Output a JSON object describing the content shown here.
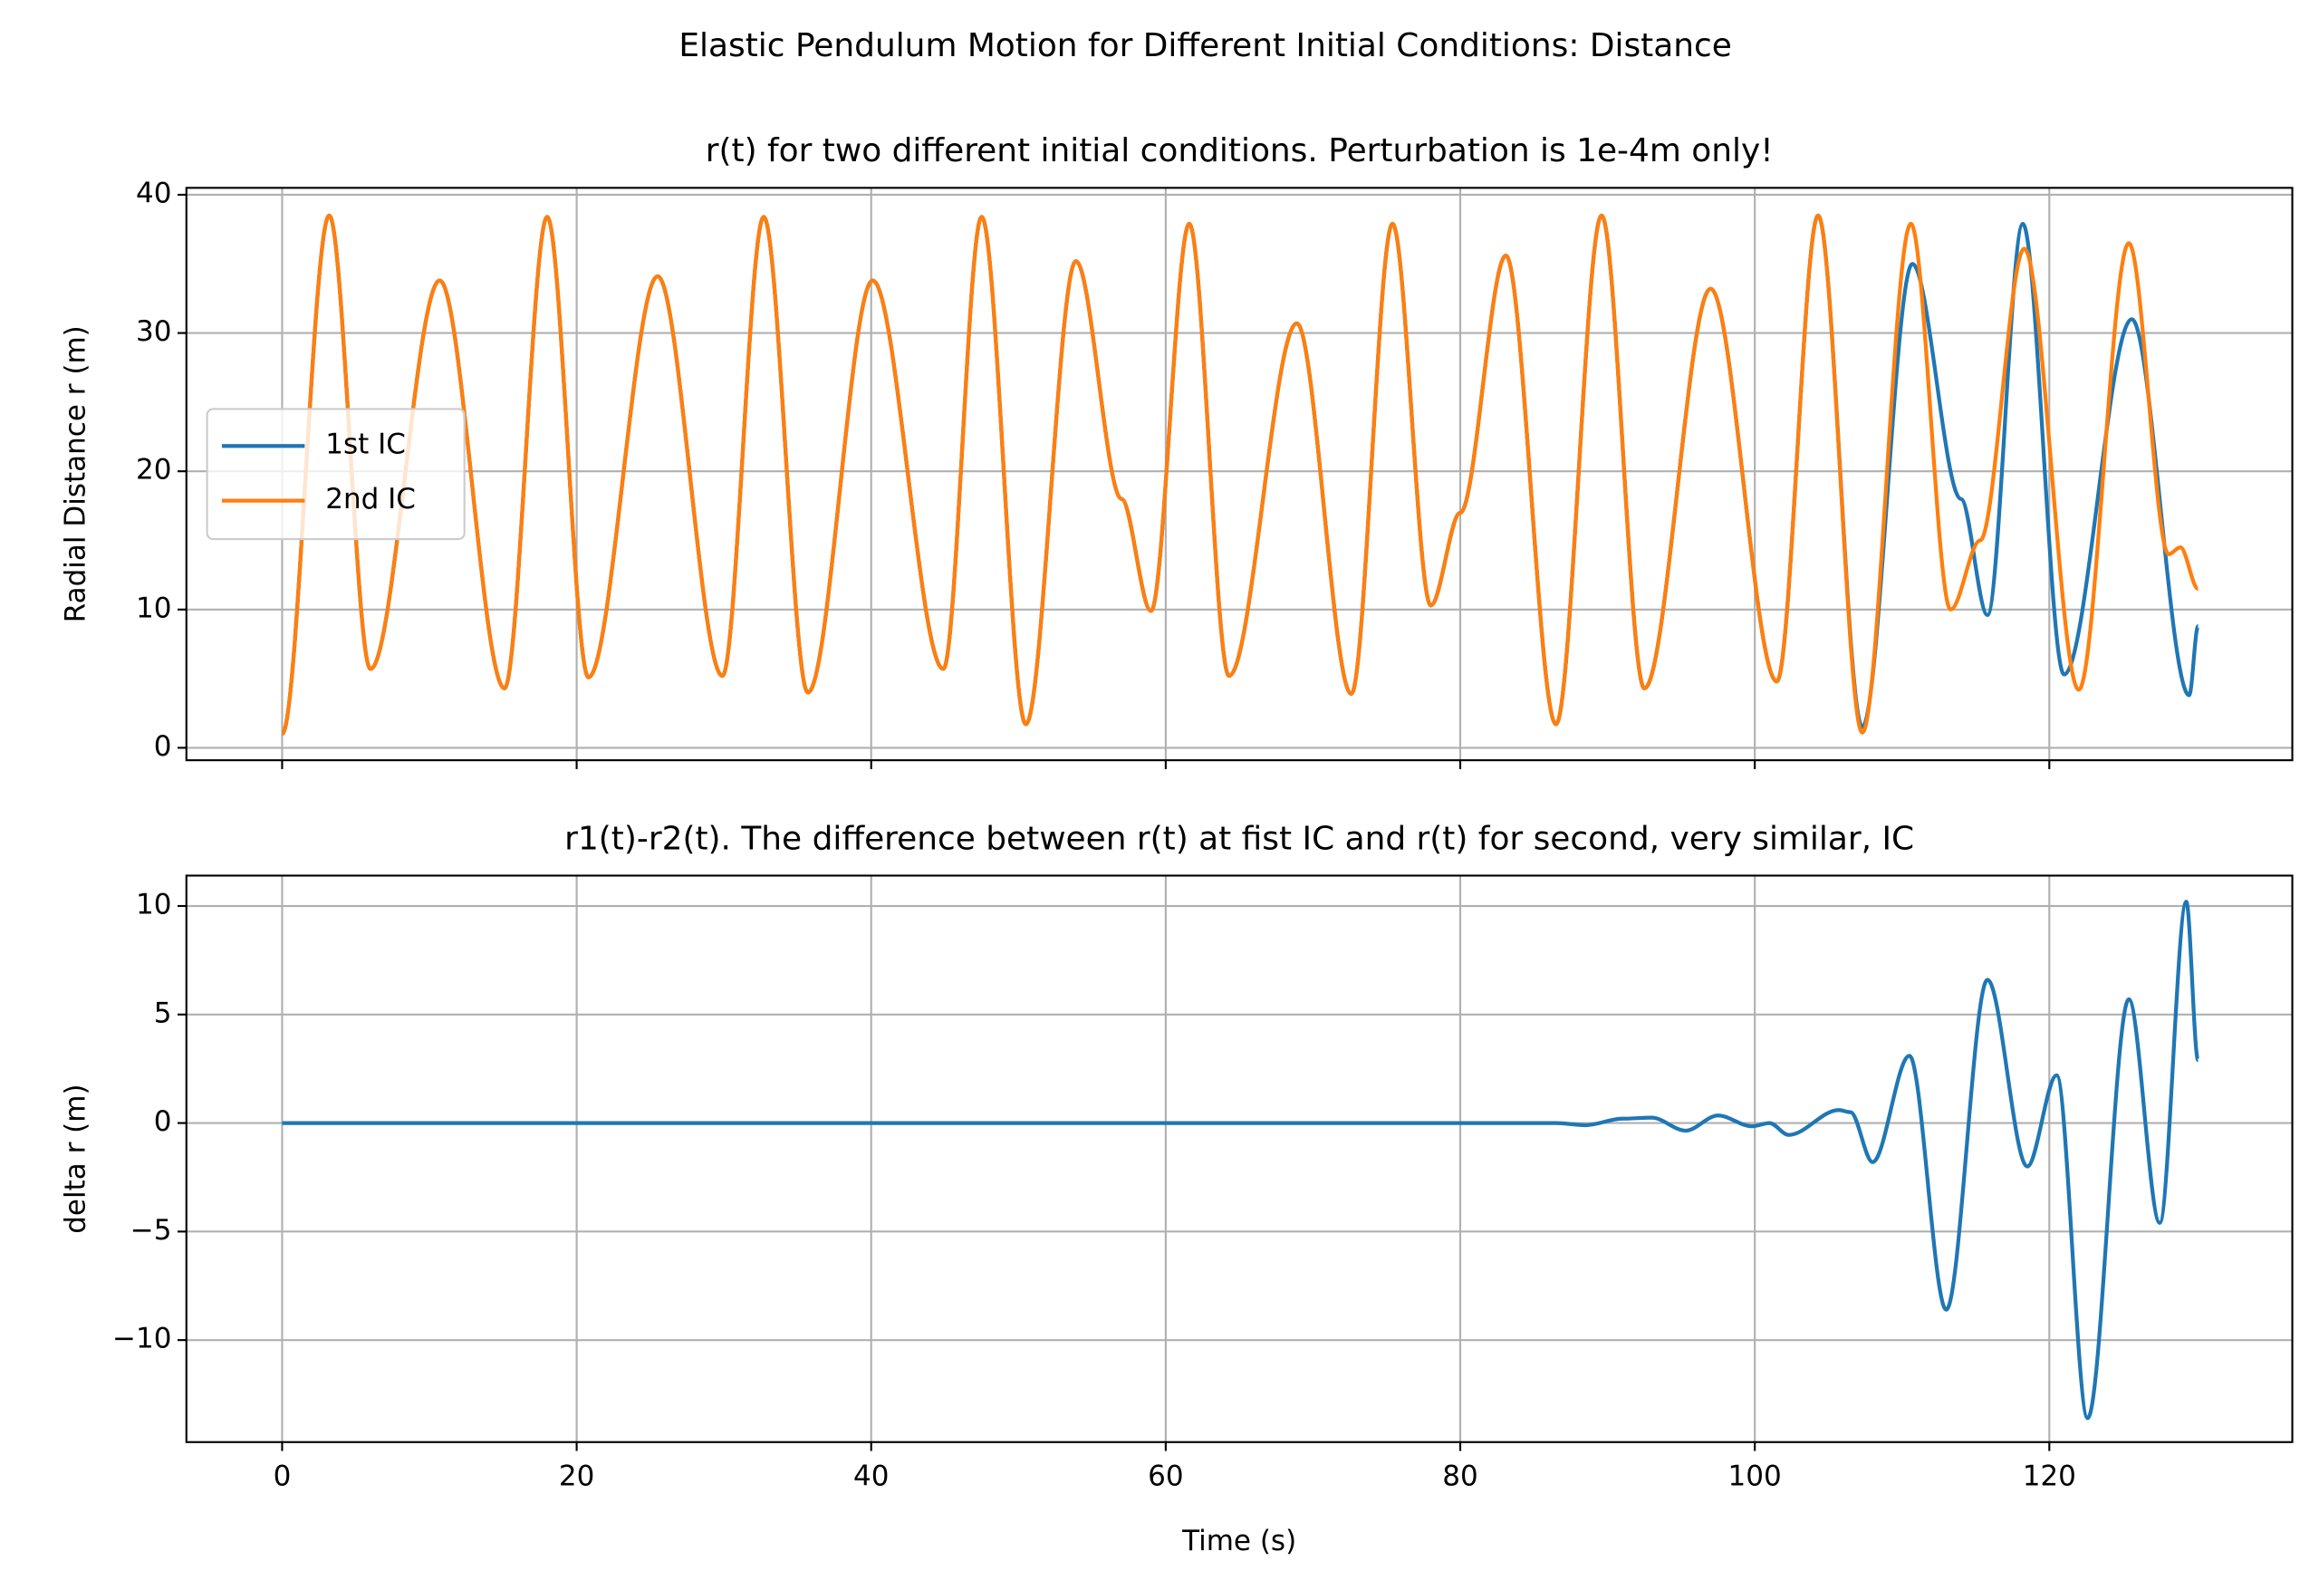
{
  "title": "Elastic Pendulum Motion for Different Initial Conditions: Distance",
  "chart_data": [
    {
      "type": "line",
      "title": "r(t) for two different initial conditions. Perturbation is 1e-4m only!",
      "ylabel": "Radial Distance r (m)",
      "xlim": [
        -6.5,
        136.5
      ],
      "ylim": [
        -0.9,
        40.5
      ],
      "xticks": [
        0,
        20,
        40,
        60,
        80,
        100,
        120
      ],
      "yticks": [
        0,
        10,
        20,
        30,
        40
      ],
      "show_xtick_labels": false,
      "grid": true,
      "legend": "center left",
      "series": [
        {
          "name": "1st IC",
          "color": "#1f77b4",
          "x": [
            0,
            3.2,
            6,
            10.7,
            15.1,
            18,
            20.8,
            25.5,
            29.9,
            32.7,
            35.7,
            40.1,
            44.9,
            47.5,
            50.5,
            53.9,
            57,
            59,
            61.6,
            64.3,
            68.9,
            72.6,
            75.4,
            78,
            80,
            83.1,
            86.5,
            89.6,
            92.5,
            97,
            101.5,
            104.3,
            107.3,
            110.7,
            114,
            115.8,
            118.2,
            121,
            125.6,
            129.5,
            130.1
          ],
          "values": [
            1,
            38.5,
            5.7,
            33.8,
            4.3,
            38.4,
            5.1,
            34.1,
            5.2,
            38.4,
            4,
            33.8,
            5.7,
            38.4,
            1.7,
            35.2,
            18,
            9.9,
            37.9,
            5.2,
            30.7,
            3.9,
            37.9,
            10.3,
            17,
            35.6,
            1.7,
            38.5,
            4.3,
            33.2,
            4.8,
            38.5,
            1.5,
            35,
            18,
            9.6,
            37.9,
            5.3,
            31,
            3.8,
            8.8
          ]
        },
        {
          "name": "2nd IC",
          "color": "#ff7f0e",
          "x": [
            0,
            3.2,
            6,
            10.7,
            15.1,
            18,
            20.8,
            25.5,
            29.9,
            32.7,
            35.7,
            40.1,
            44.9,
            47.5,
            50.5,
            53.9,
            57,
            59,
            61.6,
            64.3,
            68.9,
            72.6,
            75.4,
            78,
            80,
            83.1,
            86.5,
            89.6,
            92.5,
            97,
            101.5,
            104.3,
            107.3,
            110.6,
            113.3,
            115.3,
            118.3,
            122,
            125.4,
            128.1,
            128.9,
            130.1
          ],
          "values": [
            1,
            38.5,
            5.7,
            33.8,
            4.3,
            38.4,
            5.1,
            34.1,
            5.2,
            38.4,
            4,
            33.8,
            5.7,
            38.4,
            1.7,
            35.2,
            18,
            9.9,
            37.9,
            5.2,
            30.7,
            3.9,
            37.9,
            10.3,
            17,
            35.6,
            1.7,
            38.5,
            4.3,
            33.2,
            4.8,
            38.5,
            1.1,
            37.9,
            10,
            15,
            36.1,
            4.2,
            36.5,
            14,
            14.5,
            11.5
          ]
        }
      ]
    },
    {
      "type": "line",
      "title": "r1(t)-r2(t). The difference between r(t) at fist IC and r(t) for second, very similar, IC",
      "xlabel": "Time (s)",
      "ylabel": "delta r (m)",
      "xlim": [
        -6.5,
        136.5
      ],
      "ylim": [
        -14.7,
        11.4
      ],
      "xticks": [
        0,
        20,
        40,
        60,
        80,
        100,
        120
      ],
      "yticks": [
        {
          "value": -10,
          "label": "−10"
        },
        {
          "value": -5,
          "label": "−5"
        },
        0,
        5,
        10
      ],
      "show_xtick_labels": true,
      "grid": true,
      "series": [
        {
          "color": "#1f77b4",
          "x": [
            0,
            86.5,
            88.5,
            91,
            93,
            95.3,
            97.5,
            99.8,
            101,
            102.3,
            105.7,
            106.5,
            108,
            110.5,
            113,
            115.8,
            118.5,
            120.5,
            122.6,
            125.4,
            127.5,
            129.3,
            130.1
          ],
          "values": [
            0,
            0,
            -0.1,
            0.2,
            0.25,
            -0.35,
            0.35,
            -0.15,
            0,
            -0.55,
            0.6,
            0.5,
            -1.8,
            3.1,
            -8.6,
            6.6,
            -2,
            2.2,
            -13.6,
            5.7,
            -4.6,
            10.2,
            2.9
          ]
        }
      ]
    }
  ]
}
